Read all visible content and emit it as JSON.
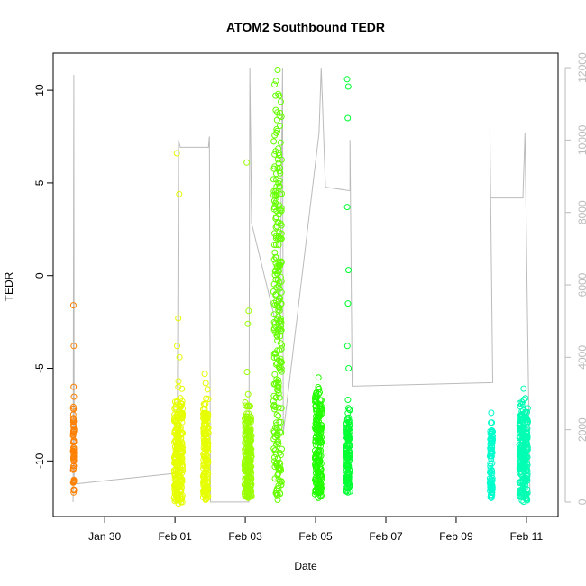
{
  "chart_data": {
    "type": "scatter",
    "title": "ATOM2 Southbound TEDR",
    "xlabel": "Date",
    "ylabel": "TEDR",
    "x_unit": "days",
    "xlim": [
      "Jan 28 12:48",
      "Feb 11 21:36"
    ],
    "ylim": [
      -13,
      12
    ],
    "y2lim": [
      -400,
      12400
    ],
    "x_tick_labels": [
      "Jan 30",
      "Feb 01",
      "Feb 03",
      "Feb 05",
      "Feb 07",
      "Feb 09",
      "Feb 11"
    ],
    "y_tick_labels": [
      "-10",
      "-5",
      "0",
      "5",
      "10"
    ],
    "y2_tick_labels": [
      "0",
      "2000",
      "4000",
      "6000",
      "8000",
      "10000",
      "12000"
    ],
    "point_clusters": [
      {
        "x_start": "Jan 29 02:24",
        "x_end": "Jan 29 03:07",
        "color": "#ff8000",
        "y_min": -11.7,
        "y_max": -6.0,
        "outliers": [
          -1.6,
          -3.8
        ]
      },
      {
        "x_start": "Jan 31 23:31",
        "x_end": "Feb 01 05:17",
        "color": "#e6ff00",
        "y_min": -12.3,
        "y_max": -5.7,
        "outliers": [
          6.6,
          4.4,
          -2.3,
          -3.8,
          -4.4
        ]
      },
      {
        "x_start": "Feb 01 19:12",
        "x_end": "Feb 01 22:48",
        "color": "#e6ff00",
        "y_min": -12.1,
        "y_max": -5.8,
        "outliers": [
          -5.3
        ]
      },
      {
        "x_start": "Feb 02 23:31",
        "x_end": "Feb 03 04:19",
        "color": "#99ff00",
        "y_min": -12.0,
        "y_max": -6.4,
        "outliers": [
          6.1,
          -1.9,
          -2.6,
          -5.2
        ]
      },
      {
        "x_start": "Feb 03 19:12",
        "x_end": "Feb 04 00:58",
        "color": "#66ff00",
        "y_min": -12.1,
        "y_max": 11.1,
        "outliers": [
          10.5,
          9.8,
          8.8,
          7.7,
          6.6,
          5.8,
          4.8,
          3.3,
          2.0,
          0.5,
          -1.0,
          -2.2,
          -3.5,
          -4.8,
          -6.0
        ]
      },
      {
        "x_start": "Feb 04 23:31",
        "x_end": "Feb 05 04:19",
        "color": "#22ff00",
        "y_min": -12.0,
        "y_max": -5.5,
        "outliers": []
      },
      {
        "x_start": "Feb 05 20:38",
        "x_end": "Feb 05 23:31",
        "color": "#00ff33",
        "y_min": -11.7,
        "y_max": -6.7,
        "outliers": [
          10.6,
          10.2,
          8.5,
          3.7,
          0.3,
          -1.5,
          -3.8,
          -5.0
        ]
      },
      {
        "x_start": "Feb 09 23:02",
        "x_end": "Feb 10 00:58",
        "color": "#00ffcc",
        "y_min": -12.0,
        "y_max": -7.4,
        "outliers": []
      },
      {
        "x_start": "Feb 10 19:12",
        "x_end": "Feb 11 00:58",
        "color": "#00ffb3",
        "y_min": -12.2,
        "y_max": -6.1,
        "outliers": []
      }
    ],
    "right_axis_line": {
      "color": "#bbbbbb",
      "points": [
        [
          "Jan 29 02:24",
          0
        ],
        [
          "Jan 29 02:53",
          11800
        ],
        [
          "Jan 29 03:07",
          500
        ],
        [
          "Feb 01 01:26",
          800
        ],
        [
          "Feb 01 02:24",
          10000
        ],
        [
          "Feb 01 03:36",
          9800
        ],
        [
          "Feb 01 22:48",
          9800
        ],
        [
          "Feb 01 23:31",
          10100
        ],
        [
          "Feb 02 00:14",
          0
        ],
        [
          "Feb 03 02:24",
          0
        ],
        [
          "Feb 03 03:07",
          12000
        ],
        [
          "Feb 03 04:19",
          7700
        ],
        [
          "Feb 03 23:31",
          4500
        ],
        [
          "Feb 04 01:26",
          12000
        ],
        [
          "Feb 04 01:55",
          1900
        ],
        [
          "Feb 05 02:24",
          10200
        ],
        [
          "Feb 05 03:50",
          12000
        ],
        [
          "Feb 05 06:43",
          8700
        ],
        [
          "Feb 05 23:31",
          8600
        ],
        [
          "Feb 05 23:31",
          10000
        ],
        [
          "Feb 06 00:58",
          3200
        ],
        [
          "Feb 10 00:58",
          3300
        ],
        [
          "Feb 09 23:02",
          10300
        ],
        [
          "Feb 09 23:31",
          8400
        ],
        [
          "Feb 10 21:36",
          8400
        ],
        [
          "Feb 10 23:02",
          10200
        ],
        [
          "Feb 11 02:24",
          200
        ]
      ]
    }
  }
}
